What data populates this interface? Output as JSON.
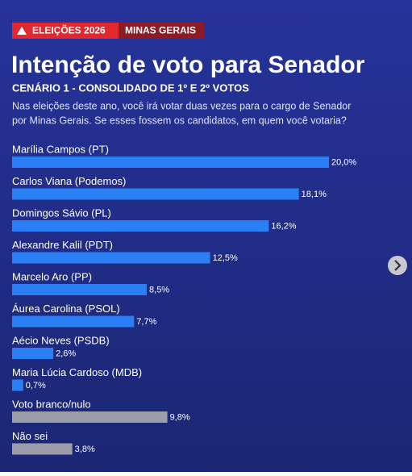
{
  "header": {
    "badge": "ELEIÇÕES 2026",
    "region": "MINAS GERAIS"
  },
  "chart_data": {
    "type": "bar",
    "orientation": "horizontal",
    "title": "Intenção de voto para Senador",
    "subtitle": "CENÁRIO 1 - CONSOLIDADO DE 1º E 2º VOTOS",
    "description": [
      "Nas eleições deste ano, você irá votar duas vezes para o cargo de Senador",
      "por Minas Gerais. Se esses fossem os candidatos, em quem você votaria?"
    ],
    "categories": [
      "Marília Campos (PT)",
      "Carlos Viana (Podemos)",
      "Domingos Sávio (PL)",
      "Alexandre Kalil (PDT)",
      "Marcelo Aro (PP)",
      "Áurea Carolina (PSOL)",
      "Aécio Neves (PSDB)",
      "Maria Lúcia Cardoso (MDB)",
      "Voto branco/nulo",
      "Não sei"
    ],
    "values": [
      20.0,
      18.1,
      16.2,
      12.5,
      8.5,
      7.7,
      2.6,
      0.7,
      9.8,
      3.8
    ],
    "value_labels": [
      "20,0%",
      "18,1%",
      "16,2%",
      "12,5%",
      "8,5%",
      "7,7%",
      "2,6%",
      "0,7%",
      "9,8%",
      "3,8%"
    ],
    "colors": [
      "#2a7ff5",
      "#2a7ff5",
      "#2a7ff5",
      "#2a7ff5",
      "#2a7ff5",
      "#2a7ff5",
      "#2a7ff5",
      "#2a7ff5",
      "#9c9cab",
      "#9c9cab"
    ]
  }
}
